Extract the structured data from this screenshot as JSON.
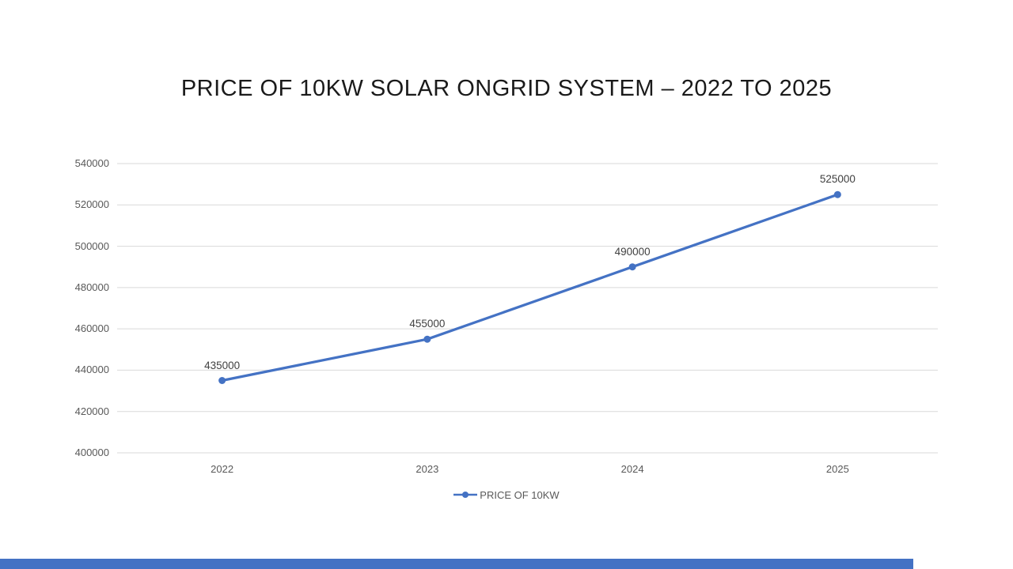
{
  "slide": {
    "title": "PRICE OF 10KW SOLAR ONGRID SYSTEM – 2022 TO 2025"
  },
  "chart_data": {
    "type": "line",
    "title": "PRICE OF 10KW SOLAR ONGRID SYSTEM – 2022 TO 2025",
    "categories": [
      "2022",
      "2023",
      "2024",
      "2025"
    ],
    "series": [
      {
        "name": "PRICE OF 10KW",
        "values": [
          435000,
          455000,
          490000,
          525000
        ],
        "labels": [
          "435000",
          "455000",
          "490000",
          "525000"
        ]
      }
    ],
    "xlabel": "",
    "ylabel": "",
    "ylim": [
      400000,
      540000
    ],
    "ytick_step": 20000,
    "yticks": [
      "400000",
      "420000",
      "440000",
      "460000",
      "480000",
      "500000",
      "520000",
      "540000"
    ],
    "grid": true,
    "legend_position": "bottom",
    "legend": [
      "PRICE OF 10KW"
    ],
    "marker": "circle"
  },
  "colors": {
    "series_blue": "#4472C4",
    "gridline": "#D9D9D9",
    "axis_label_text": "#595959",
    "data_label_text": "#404040",
    "title_text": "#1a1a1a",
    "accent_bar": "#4472C4",
    "background": "#ffffff"
  }
}
